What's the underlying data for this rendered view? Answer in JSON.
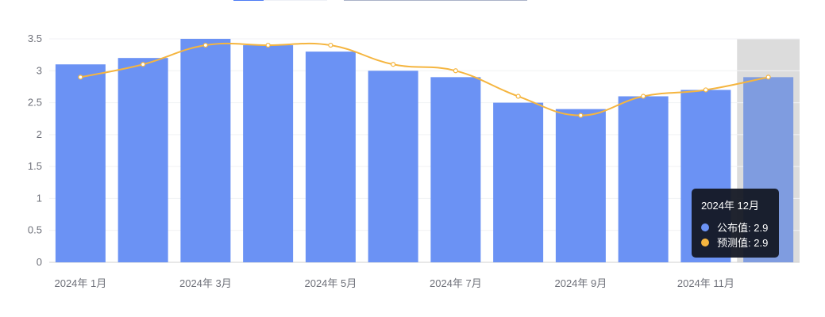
{
  "chart_data": {
    "type": "bar",
    "categories": [
      "2024年 1月",
      "2024年 2月",
      "2024年 3月",
      "2024年 4月",
      "2024年 5月",
      "2024年 6月",
      "2024年 7月",
      "2024年 8月",
      "2024年 9月",
      "2024年 10月",
      "2024年 11月",
      "2024年 12月"
    ],
    "x_tick_labels": [
      "2024年 1月",
      "2024年 3月",
      "2024年 5月",
      "2024年 7月",
      "2024年 9月",
      "2024年 11月"
    ],
    "y_ticks": [
      "0",
      "0.5",
      "1",
      "1.5",
      "2",
      "2.5",
      "3",
      "3.5"
    ],
    "ylim": [
      0,
      3.5
    ],
    "grid": true,
    "series": [
      {
        "name": "公布值",
        "type": "bar",
        "color": "#6b92f4",
        "values": [
          3.1,
          3.2,
          3.5,
          3.4,
          3.3,
          3.0,
          2.9,
          2.5,
          2.4,
          2.6,
          2.7,
          2.9
        ]
      },
      {
        "name": "预测值",
        "type": "line",
        "color": "#f5b53f",
        "values": [
          2.9,
          3.1,
          3.4,
          3.4,
          3.4,
          3.1,
          3.0,
          2.6,
          2.3,
          2.6,
          2.7,
          2.9
        ]
      }
    ],
    "highlighted_index": 11
  },
  "tooltip": {
    "title": "2024年 12月",
    "rows": [
      {
        "label": "公布值: 2.9",
        "color": "#6b92f4"
      },
      {
        "label": "预测值: 2.9",
        "color": "#f5b53f"
      }
    ]
  }
}
